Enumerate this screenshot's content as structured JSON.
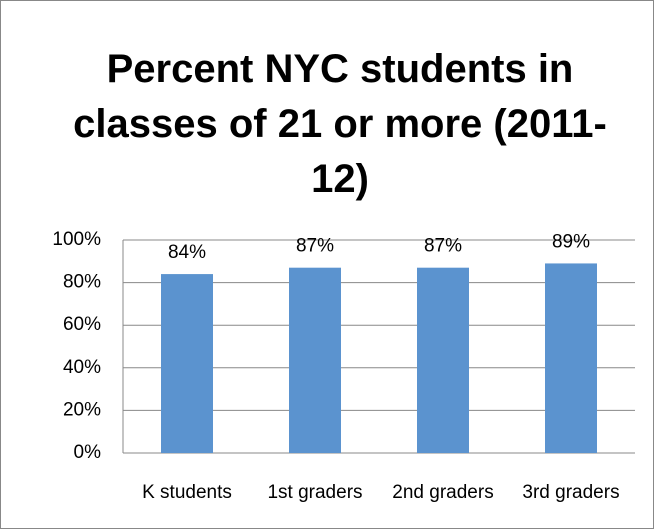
{
  "chart_data": {
    "type": "bar",
    "title": "Percent NYC students in classes of 21 or more (2011-12)",
    "categories": [
      "K students",
      "1st graders",
      "2nd graders",
      "3rd graders"
    ],
    "values": [
      84,
      87,
      87,
      89
    ],
    "value_labels": [
      "84%",
      "87%",
      "87%",
      "89%"
    ],
    "color": "#5b93cf",
    "ylim": [
      0,
      100
    ],
    "yticks": [
      {
        "value": 0,
        "label": "0%"
      },
      {
        "value": 20,
        "label": "20%"
      },
      {
        "value": 40,
        "label": "40%"
      },
      {
        "value": 60,
        "label": "60%"
      },
      {
        "value": 80,
        "label": "80%"
      },
      {
        "value": 100,
        "label": "100%"
      }
    ],
    "grid": true
  }
}
